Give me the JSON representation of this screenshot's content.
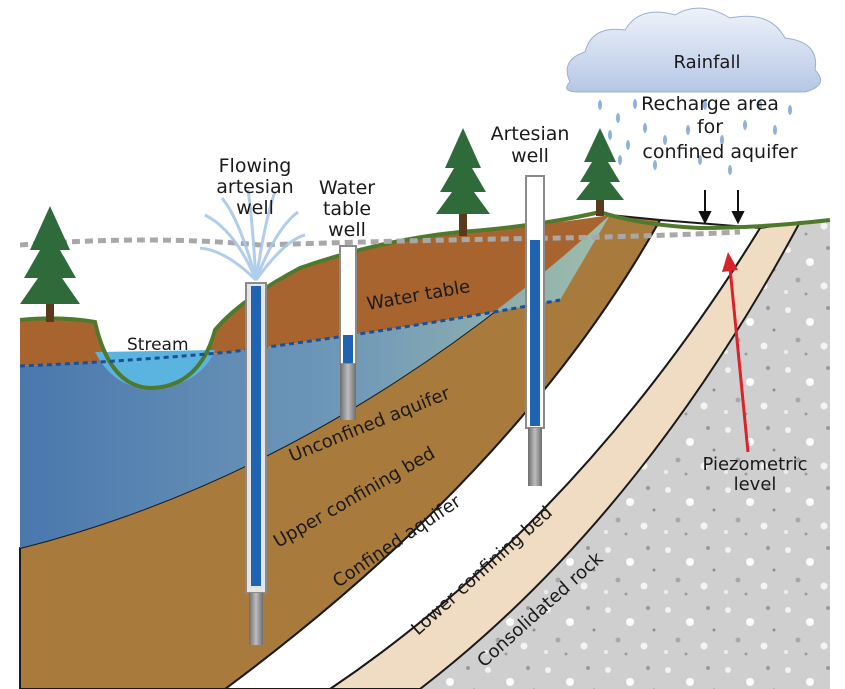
{
  "figure": {
    "topic": "Groundwater aquifer cross-section",
    "labels": {
      "rainfall": "Rainfall",
      "recharge_line1": "Recharge area",
      "recharge_line2": "for",
      "recharge_line3": "confined aquifer",
      "artesian_well_line1": "Artesian",
      "artesian_well_line2": "well",
      "flowing_well_line1": "Flowing",
      "flowing_well_line2": "artesian",
      "flowing_well_line3": "well",
      "water_table_well_line1": "Water",
      "water_table_well_line2": "table",
      "water_table_well_line3": "well",
      "stream": "Stream",
      "water_table": "Water table",
      "unconfined_aquifer": "Unconfined aquifer",
      "upper_confining_bed": "Upper confining bed",
      "confined_aquifer": "Confined aquifer",
      "lower_confining_bed": "Lower confining bed",
      "consolidated_rock": "Consolidated rock",
      "piezometric_line1": "Piezometric",
      "piezometric_line2": "level"
    },
    "colors": {
      "soil": "#a8642e",
      "aquifer_water": "#5f87b3",
      "confining_bed": "#a87a3c",
      "confined_aquifer": "#ffffff",
      "lower_bed": "#efdcc3",
      "rock": "#c9c9c9",
      "grass": "#4f7a2e",
      "well_water": "#1f63b3",
      "arrow": "#d9232a",
      "cloud": "#c9d6ec",
      "tree": "#2f6b3a"
    }
  }
}
